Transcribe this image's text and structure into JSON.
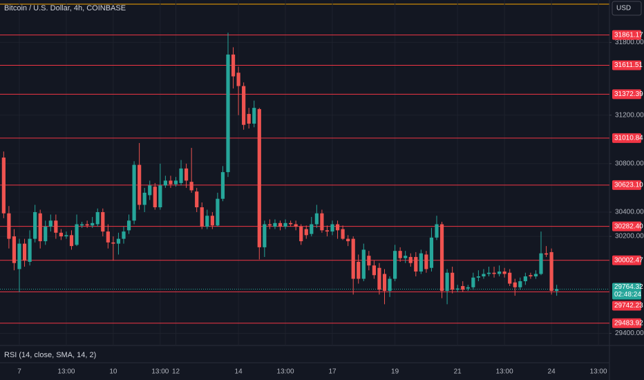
{
  "header": {
    "title": "Bitcoin / U.S. Dollar, 4h, COINBASE",
    "currency": "USD"
  },
  "chart_data": {
    "type": "candlestick",
    "categories": [
      null,
      null,
      null,
      "7",
      null,
      null,
      null,
      null,
      null,
      null,
      null,
      null,
      "13:00",
      null,
      null,
      null,
      null,
      null,
      null,
      null,
      null,
      "10",
      null,
      null,
      null,
      null,
      null,
      null,
      null,
      null,
      "13:00",
      null,
      null,
      "12",
      null,
      null,
      null,
      null,
      null,
      null,
      null,
      null,
      null,
      null,
      null,
      "14",
      null,
      null,
      null,
      null,
      null,
      null,
      null,
      null,
      "13:00",
      null,
      null,
      null,
      null,
      null,
      null,
      null,
      null,
      "17",
      null,
      null,
      null,
      null,
      null,
      null,
      null,
      null,
      null,
      null,
      null,
      "19",
      null,
      null,
      null,
      null,
      null,
      null,
      null,
      null,
      null,
      null,
      null,
      "21",
      null,
      null,
      null,
      null,
      null,
      null,
      null,
      null,
      "13:00",
      null,
      null,
      null,
      null,
      null,
      null,
      null,
      null,
      "24",
      null,
      null,
      null,
      null,
      null,
      null,
      null,
      null,
      "13:00"
    ],
    "candles": [
      [
        30850,
        30900,
        30350,
        30390
      ],
      [
        30390,
        30450,
        30100,
        30180
      ],
      [
        30200,
        30260,
        29920,
        29980
      ],
      [
        29930,
        30180,
        29740,
        30140
      ],
      [
        30140,
        30180,
        29950,
        30000
      ],
      [
        29990,
        30250,
        29960,
        30180
      ],
      [
        30180,
        30460,
        30150,
        30400
      ],
      [
        30390,
        30420,
        30100,
        30160
      ],
      [
        30160,
        30330,
        30130,
        30280
      ],
      [
        30280,
        30380,
        30240,
        30330
      ],
      [
        30330,
        30380,
        30180,
        30230
      ],
      [
        30230,
        30260,
        30170,
        30200
      ],
      [
        30200,
        30240,
        30180,
        30210
      ],
      [
        30210,
        30250,
        30090,
        30120
      ],
      [
        30130,
        30380,
        30120,
        30300
      ],
      [
        30290,
        30320,
        30270,
        30300
      ],
      [
        30300,
        30330,
        30270,
        30290
      ],
      [
        30290,
        30360,
        30270,
        30310
      ],
      [
        30300,
        30430,
        30280,
        30400
      ],
      [
        30400,
        30430,
        30200,
        30240
      ],
      [
        30240,
        30300,
        30100,
        30150
      ],
      [
        30150,
        30200,
        30000,
        30140
      ],
      [
        30140,
        30230,
        30050,
        30180
      ],
      [
        30180,
        30280,
        30140,
        30240
      ],
      [
        30250,
        30380,
        30220,
        30330
      ],
      [
        30330,
        30820,
        30300,
        30790
      ],
      [
        30790,
        30970,
        30420,
        30460
      ],
      [
        30460,
        30600,
        30400,
        30560
      ],
      [
        30540,
        30660,
        30500,
        30620
      ],
      [
        30610,
        30640,
        30420,
        30440
      ],
      [
        30440,
        30800,
        30420,
        30620
      ],
      [
        30620,
        30700,
        30600,
        30660
      ],
      [
        30660,
        30700,
        30600,
        30630
      ],
      [
        30630,
        30690,
        30610,
        30660
      ],
      [
        30640,
        30830,
        30620,
        30760
      ],
      [
        30760,
        30800,
        30600,
        30660
      ],
      [
        30650,
        30930,
        30560,
        30580
      ],
      [
        30570,
        30600,
        30400,
        30440
      ],
      [
        30440,
        30480,
        30260,
        30280
      ],
      [
        30280,
        30420,
        30260,
        30370
      ],
      [
        30370,
        30400,
        30260,
        30290
      ],
      [
        30290,
        30560,
        30280,
        30510
      ],
      [
        30510,
        30780,
        30490,
        30730
      ],
      [
        30730,
        31880,
        30690,
        31700
      ],
      [
        31700,
        31760,
        31420,
        31520
      ],
      [
        31550,
        31600,
        31200,
        31440
      ],
      [
        31440,
        31470,
        31080,
        31120
      ],
      [
        31210,
        31260,
        31090,
        31130
      ],
      [
        31130,
        31320,
        31100,
        31260
      ],
      [
        31250,
        31260,
        30010,
        30110
      ],
      [
        30110,
        30330,
        30030,
        30300
      ],
      [
        30300,
        30340,
        30260,
        30290
      ],
      [
        30280,
        30340,
        30260,
        30310
      ],
      [
        30310,
        30330,
        30250,
        30280
      ],
      [
        30280,
        30340,
        30260,
        30310
      ],
      [
        30310,
        30330,
        30280,
        30300
      ],
      [
        30300,
        30330,
        30250,
        30280
      ],
      [
        30280,
        30300,
        30130,
        30160
      ],
      [
        30260,
        30290,
        30180,
        30210
      ],
      [
        30220,
        30360,
        30200,
        30300
      ],
      [
        30300,
        30460,
        30270,
        30390
      ],
      [
        30390,
        30420,
        30230,
        30250
      ],
      [
        30250,
        30290,
        30200,
        30240
      ],
      [
        30240,
        30330,
        30210,
        30300
      ],
      [
        30300,
        30330,
        30180,
        30250
      ],
      [
        30260,
        30290,
        30170,
        30180
      ],
      [
        30180,
        30210,
        30120,
        30160
      ],
      [
        30180,
        30200,
        29720,
        29850
      ],
      [
        29990,
        30050,
        29810,
        29850
      ],
      [
        29850,
        30140,
        29830,
        30090
      ],
      [
        30040,
        30080,
        29920,
        29960
      ],
      [
        29960,
        30000,
        29850,
        29880
      ],
      [
        29940,
        29980,
        29720,
        29760
      ],
      [
        29890,
        29930,
        29640,
        29750
      ],
      [
        29750,
        29870,
        29700,
        29850
      ],
      [
        29850,
        30130,
        29830,
        30080
      ],
      [
        30080,
        30110,
        29990,
        30020
      ],
      [
        30020,
        30080,
        29980,
        30040
      ],
      [
        30030,
        30060,
        29950,
        29980
      ],
      [
        30030,
        30070,
        29870,
        29910
      ],
      [
        29910,
        30090,
        29890,
        30060
      ],
      [
        30050,
        30080,
        29900,
        29930
      ],
      [
        29940,
        30270,
        29910,
        30190
      ],
      [
        30190,
        30370,
        30170,
        30300
      ],
      [
        30300,
        30320,
        29690,
        29750
      ],
      [
        29750,
        29930,
        29640,
        29900
      ],
      [
        29900,
        29950,
        29730,
        29760
      ],
      [
        29760,
        29800,
        29740,
        29770
      ],
      [
        29790,
        29830,
        29740,
        29760
      ],
      [
        29770,
        29800,
        29750,
        29780
      ],
      [
        29780,
        29900,
        29760,
        29860
      ],
      [
        29860,
        29920,
        29830,
        29870
      ],
      [
        29870,
        29930,
        29850,
        29890
      ],
      [
        29890,
        29950,
        29870,
        29900
      ],
      [
        29900,
        29950,
        29860,
        29890
      ],
      [
        29890,
        29960,
        29870,
        29910
      ],
      [
        29910,
        29940,
        29860,
        29890
      ],
      [
        29900,
        29930,
        29790,
        29810
      ],
      [
        29820,
        29850,
        29710,
        29780
      ],
      [
        29780,
        29860,
        29760,
        29830
      ],
      [
        29830,
        29900,
        29800,
        29870
      ],
      [
        29880,
        29900,
        29850,
        29870
      ],
      [
        29870,
        29920,
        29850,
        29890
      ],
      [
        29890,
        30240,
        29880,
        30060
      ],
      [
        30060,
        30120,
        30030,
        30050
      ],
      [
        30070,
        30100,
        29720,
        29750
      ],
      [
        29750,
        29800,
        29710,
        29764.32
      ],
      null,
      null,
      null,
      null,
      null,
      null,
      null,
      null
    ],
    "up_color": "#26a69a",
    "down_color": "#ef5350",
    "ylim": [
      29300,
      32150
    ],
    "yticks": [
      {
        "value": 31800,
        "label": "31800.00"
      },
      {
        "value": 31200,
        "label": "31200.00"
      },
      {
        "value": 30800,
        "label": "30800.00"
      },
      {
        "value": 30400,
        "label": "30400.00"
      },
      {
        "value": 30200,
        "label": "30200.00"
      },
      {
        "value": 29400,
        "label": "29400.00"
      }
    ],
    "grid": true,
    "levels": [
      31861.17,
      31611.51,
      31372.39,
      31010.84,
      {
        "value": 30623.1,
        "label": "30623.10"
      },
      {
        "value": 30282.4,
        "label": "30282.40"
      },
      30002.47,
      29742.23,
      29483.92
    ],
    "level_color": "#f23645",
    "countdown": "02:48:24",
    "indicator": "RSI (14, close, SMA, 14, 2)"
  }
}
